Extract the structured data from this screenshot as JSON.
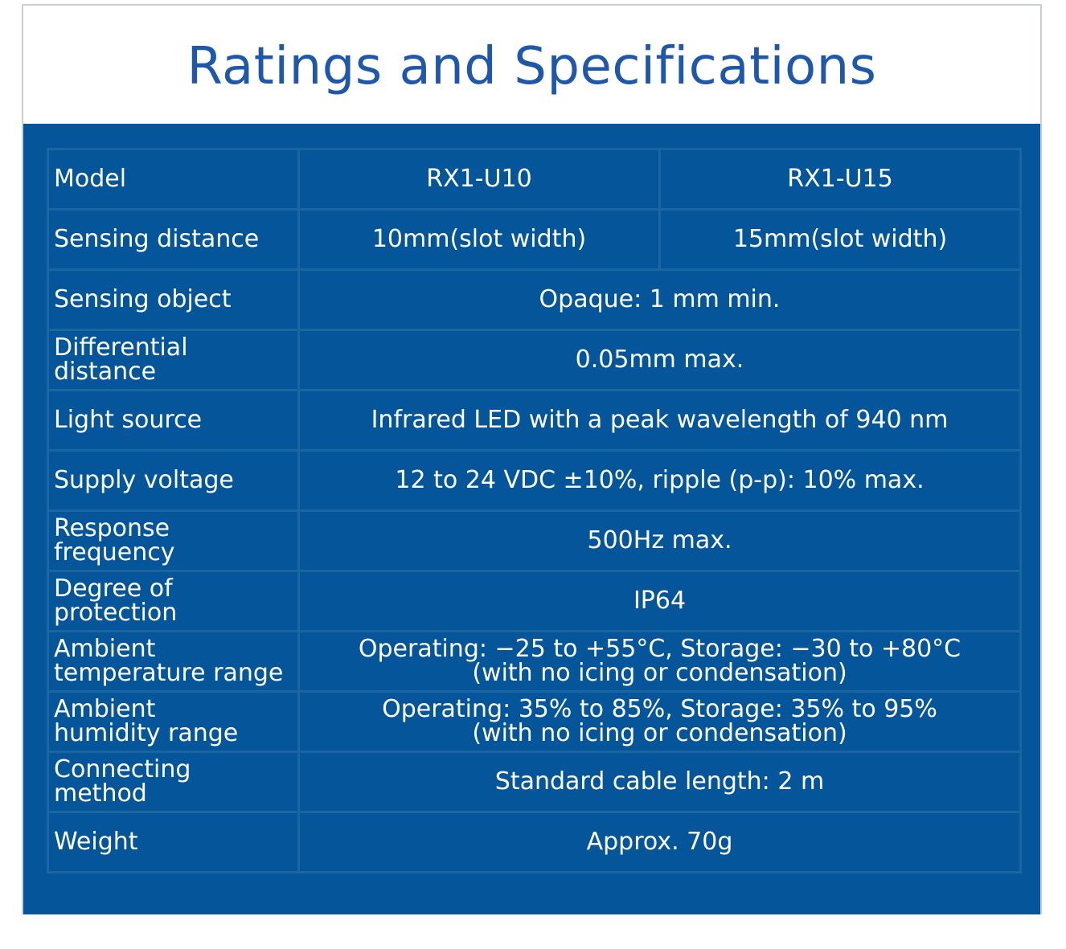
{
  "title": "Ratings and Specifications",
  "colors": {
    "title": "#1f57ab",
    "panel_background": "#04559a",
    "grid_lines": "#1b669f",
    "text": "#ffffff"
  },
  "table": {
    "model": {
      "label": "Model",
      "values": [
        "RX1-U10",
        "RX1-U15"
      ]
    },
    "sensing_distance": {
      "label": "Sensing distance",
      "values": [
        "10mm(slot width)",
        "15mm(slot width)"
      ]
    },
    "sensing_object": {
      "label": "Sensing object",
      "value": "Opaque: 1 mm min."
    },
    "differential_distance": {
      "label_lines": [
        "Differential",
        "distance"
      ],
      "value": "0.05mm max."
    },
    "light_source": {
      "label": "Light source",
      "value": "Infrared LED with a peak wavelength of 940 nm"
    },
    "supply_voltage": {
      "label": "Supply voltage",
      "value": "12 to 24 VDC ±10%, ripple (p-p): 10% max."
    },
    "response_frequency": {
      "label_lines": [
        "Response",
        "frequency"
      ],
      "value": "500Hz max."
    },
    "degree_of_protection": {
      "label_lines": [
        "Degree of",
        "protection"
      ],
      "value": "IP64"
    },
    "ambient_temperature": {
      "label_lines": [
        "Ambient",
        "temperature range"
      ],
      "value_lines": [
        "Operating: −25 to +55°C, Storage: −30 to +80°C",
        "(with no icing or condensation)"
      ]
    },
    "ambient_humidity": {
      "label_lines": [
        "Ambient",
        "humidity range"
      ],
      "value_lines": [
        "Operating: 35% to 85%, Storage: 35% to 95%",
        "(with no icing or condensation)"
      ]
    },
    "connecting_method": {
      "label_lines": [
        "Connecting",
        "method"
      ],
      "value": "Standard cable length: 2 m"
    },
    "weight": {
      "label": "Weight",
      "value": "Approx. 70g"
    }
  }
}
